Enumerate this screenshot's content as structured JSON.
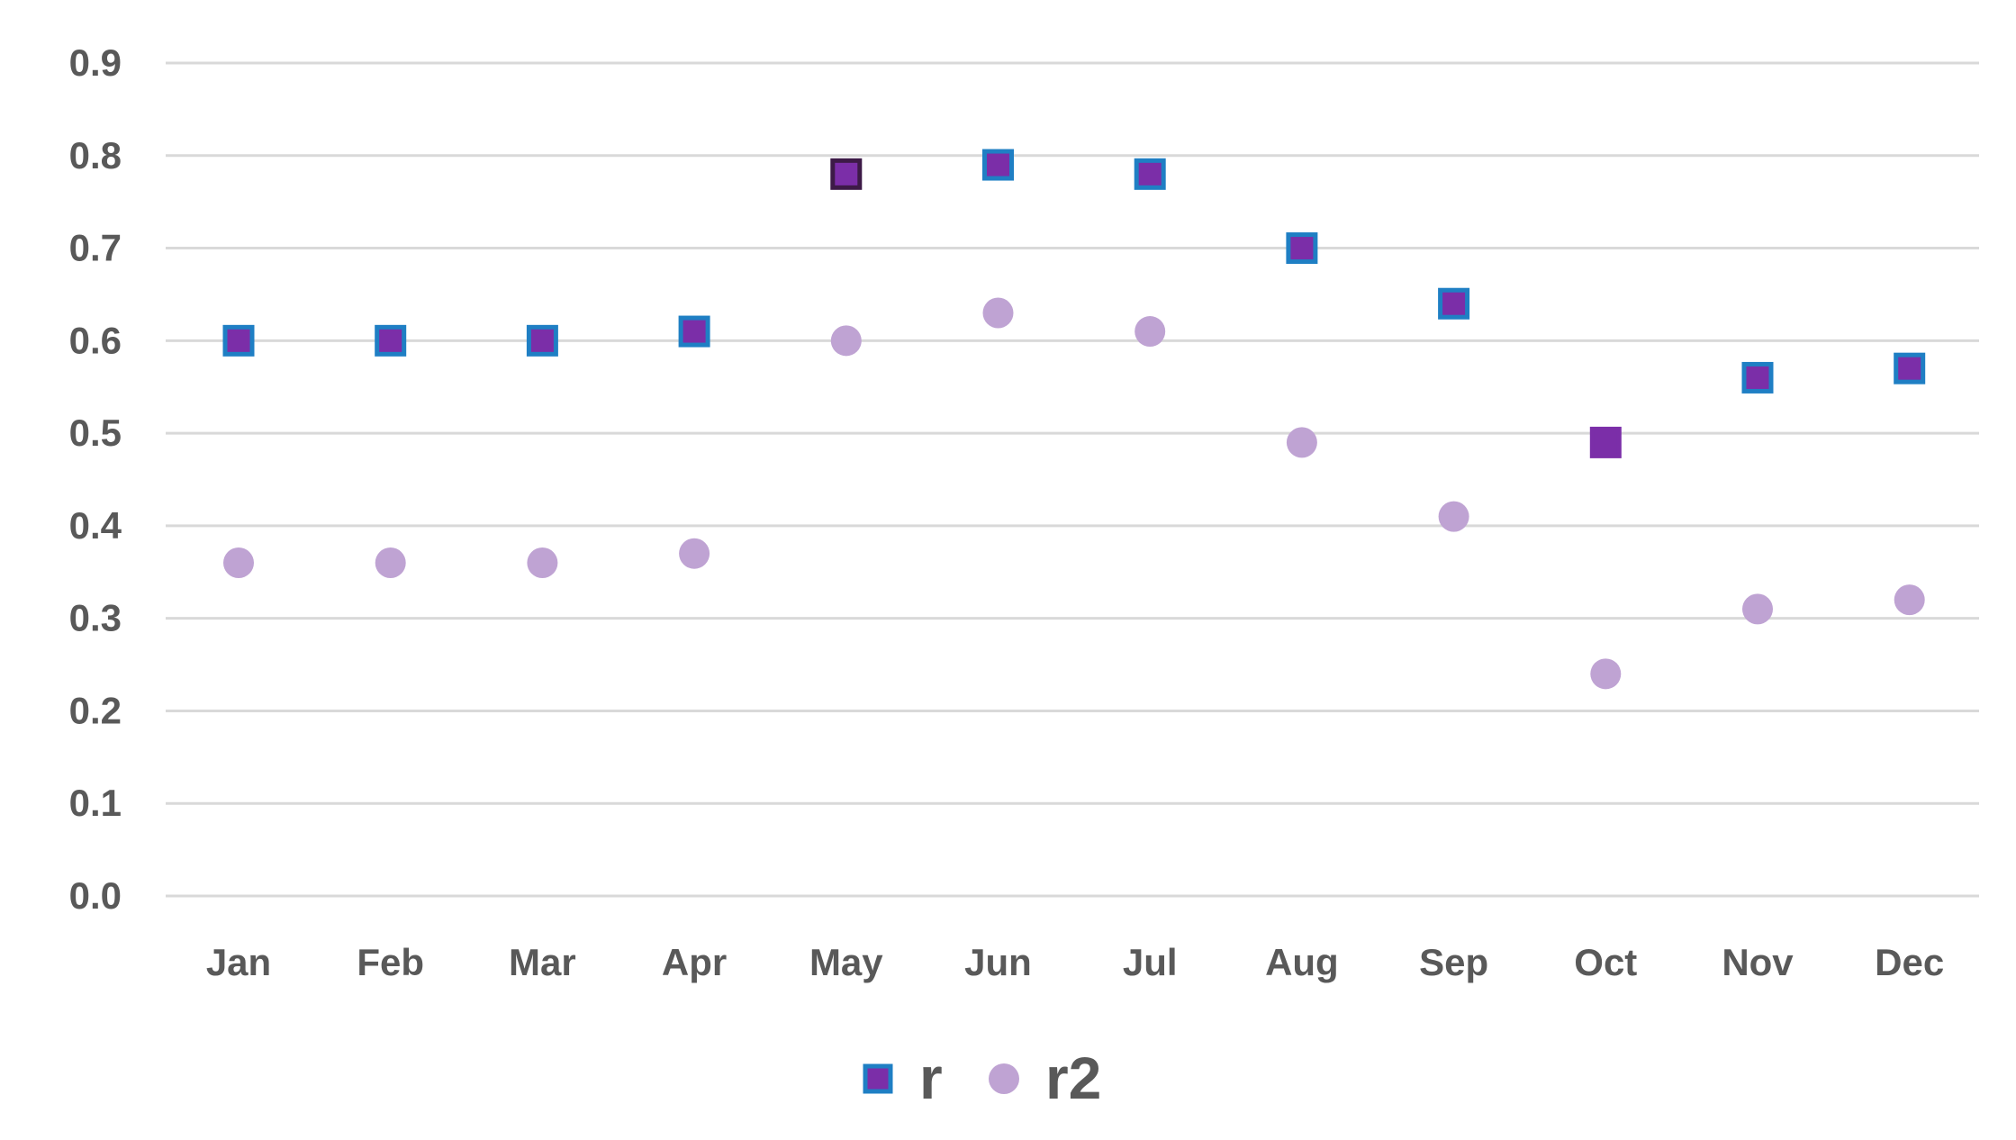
{
  "chart_data": {
    "type": "scatter",
    "categories": [
      "Jan",
      "Feb",
      "Mar",
      "Apr",
      "May",
      "Jun",
      "Jul",
      "Aug",
      "Sep",
      "Oct",
      "Nov",
      "Dec"
    ],
    "series": [
      {
        "name": "r",
        "marker": "square",
        "fill": "#7B2EA8",
        "stroke": "#1F7FC4",
        "values": [
          0.6,
          0.6,
          0.6,
          0.61,
          0.78,
          0.79,
          0.78,
          0.7,
          0.64,
          0.49,
          0.56,
          0.57
        ],
        "highlight_strokes": {
          "4": "#3D1A47",
          "9": "#7B2EA8"
        }
      },
      {
        "name": "r2",
        "marker": "circle",
        "fill": "#BFA3D3",
        "stroke": "#BFA3D3",
        "values": [
          0.36,
          0.36,
          0.36,
          0.37,
          0.6,
          0.63,
          0.61,
          0.49,
          0.41,
          0.24,
          0.31,
          0.32
        ]
      }
    ],
    "ylim": [
      0.0,
      0.9
    ],
    "yticks": [
      "0.0",
      "0.1",
      "0.2",
      "0.3",
      "0.4",
      "0.5",
      "0.6",
      "0.7",
      "0.8",
      "0.9"
    ],
    "grid": true,
    "gridline_color": "#D9D9D9",
    "legend_position": "bottom",
    "title": "",
    "xlabel": "",
    "ylabel": ""
  }
}
